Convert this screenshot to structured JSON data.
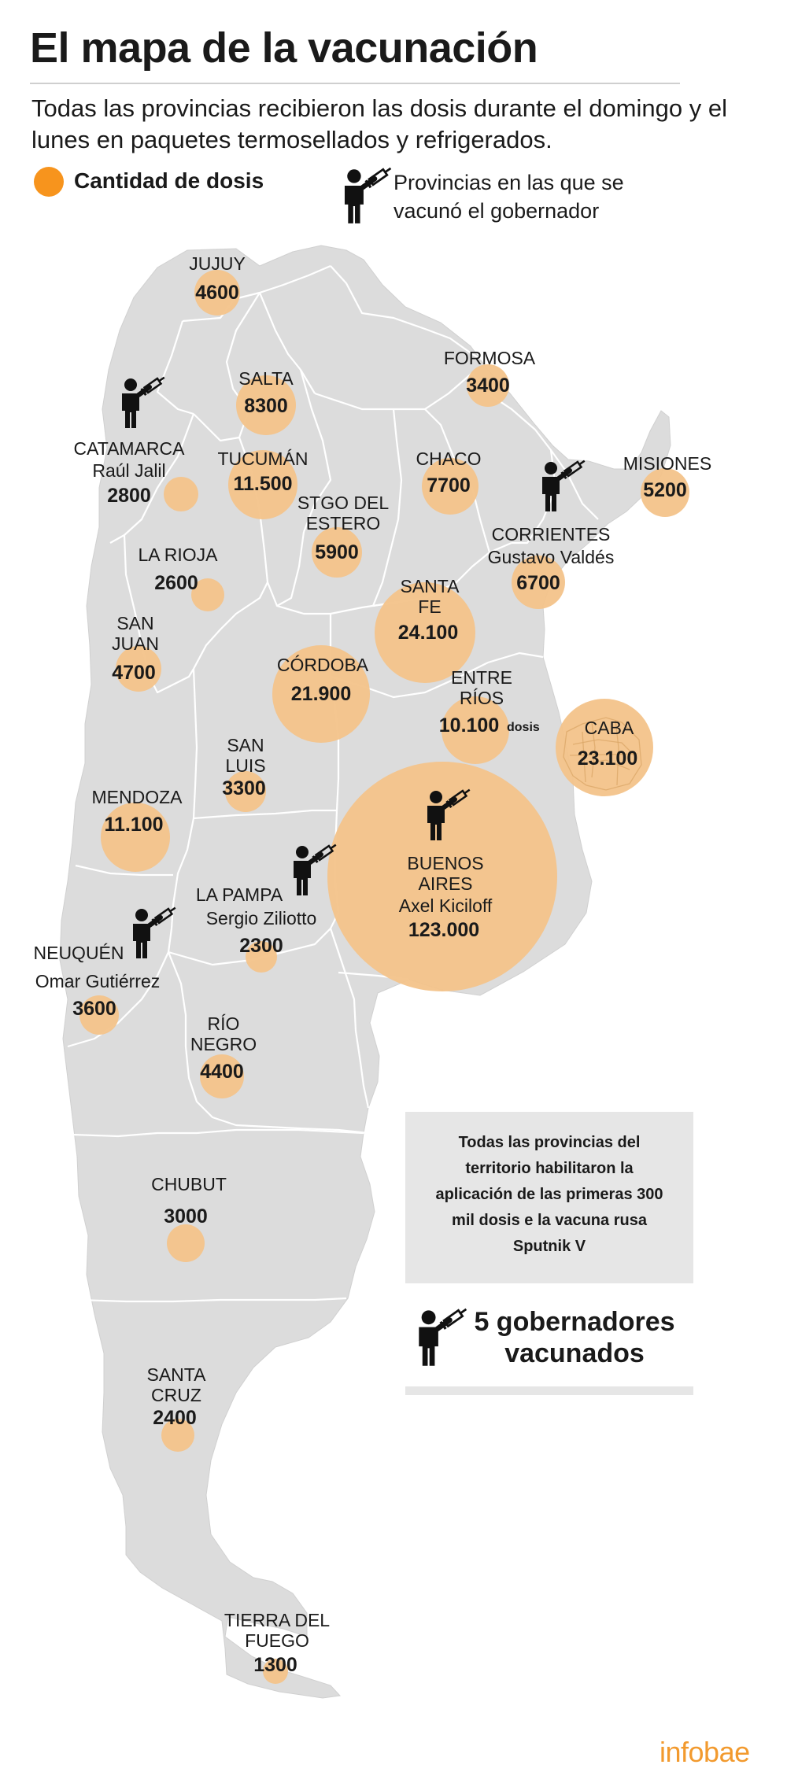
{
  "header": {
    "title": "El mapa de la vacunación",
    "subtitle": "Todas las provincias recibieron las dosis durante el domingo y el lunes en paquetes termosellados y refrigerados."
  },
  "legend": {
    "dose_label": "Cantidad de dosis",
    "governor_label": "Provincias en las que se vacunó el gobernador",
    "governor_icon": "person-with-syringe-icon"
  },
  "colors": {
    "map_fill": "#dcdcdc",
    "border": "#ffffff",
    "bubble": "#f3c38a",
    "legend_dot": "#f7941d",
    "brand": "#f29a2e"
  },
  "provinces": [
    {
      "id": "jujuy",
      "name": "JUJUY",
      "doses": "4600"
    },
    {
      "id": "salta",
      "name": "SALTA",
      "doses": "8300"
    },
    {
      "id": "formosa",
      "name": "FORMOSA",
      "doses": "3400"
    },
    {
      "id": "catamarca",
      "name": "CATAMARCA",
      "governor": "Raúl Jalil",
      "doses": "2800"
    },
    {
      "id": "tucuman",
      "name": "TUCUMÁN",
      "doses": "11.500"
    },
    {
      "id": "chaco",
      "name": "CHACO",
      "doses": "7700"
    },
    {
      "id": "misiones",
      "name": "MISIONES",
      "doses": "5200"
    },
    {
      "id": "stgo-del-estero",
      "name": "STGO DEL ESTERO",
      "doses": "5900"
    },
    {
      "id": "corrientes",
      "name": "CORRIENTES",
      "governor": "Gustavo Valdés",
      "doses": "6700"
    },
    {
      "id": "la-rioja",
      "name": "LA RIOJA",
      "doses": "2600"
    },
    {
      "id": "santa-fe",
      "name": "SANTA FE",
      "doses": "24.100"
    },
    {
      "id": "san-juan",
      "name": "SAN JUAN",
      "doses": "4700"
    },
    {
      "id": "cordoba",
      "name": "CÓRDOBA",
      "doses": "21.900"
    },
    {
      "id": "entre-rios",
      "name": "ENTRE RÍOS",
      "doses": "10.100",
      "unit": "dosis"
    },
    {
      "id": "caba",
      "name": "CABA",
      "doses": "23.100"
    },
    {
      "id": "san-luis",
      "name": "SAN LUIS",
      "doses": "3300"
    },
    {
      "id": "mendoza",
      "name": "MENDOZA",
      "doses": "11.100"
    },
    {
      "id": "buenos-aires",
      "name": "BUENOS AIRES",
      "governor": "Axel Kiciloff",
      "doses": "123.000"
    },
    {
      "id": "la-pampa",
      "name": "LA PAMPA",
      "governor": "Sergio Ziliotto",
      "doses": "2300"
    },
    {
      "id": "neuquen",
      "name": "NEUQUÉN",
      "governor": "Omar Gutiérrez",
      "doses": "3600"
    },
    {
      "id": "rio-negro",
      "name": "RÍO NEGRO",
      "doses": "4400"
    },
    {
      "id": "chubut",
      "name": "CHUBUT",
      "doses": "3000"
    },
    {
      "id": "santa-cruz",
      "name": "SANTA CRUZ",
      "doses": "2400"
    },
    {
      "id": "tierra-del-fuego",
      "name": "TIERRA DEL FUEGO",
      "doses": "1300"
    }
  ],
  "info_box": {
    "text": "Todas las provincias del territorio habilitaron la aplicación de las primeras 300 mil dosis e la vacuna rusa Sputnik V"
  },
  "governors_summary": {
    "label": "5 gobernadores vacunados"
  },
  "brand": "infobae"
}
